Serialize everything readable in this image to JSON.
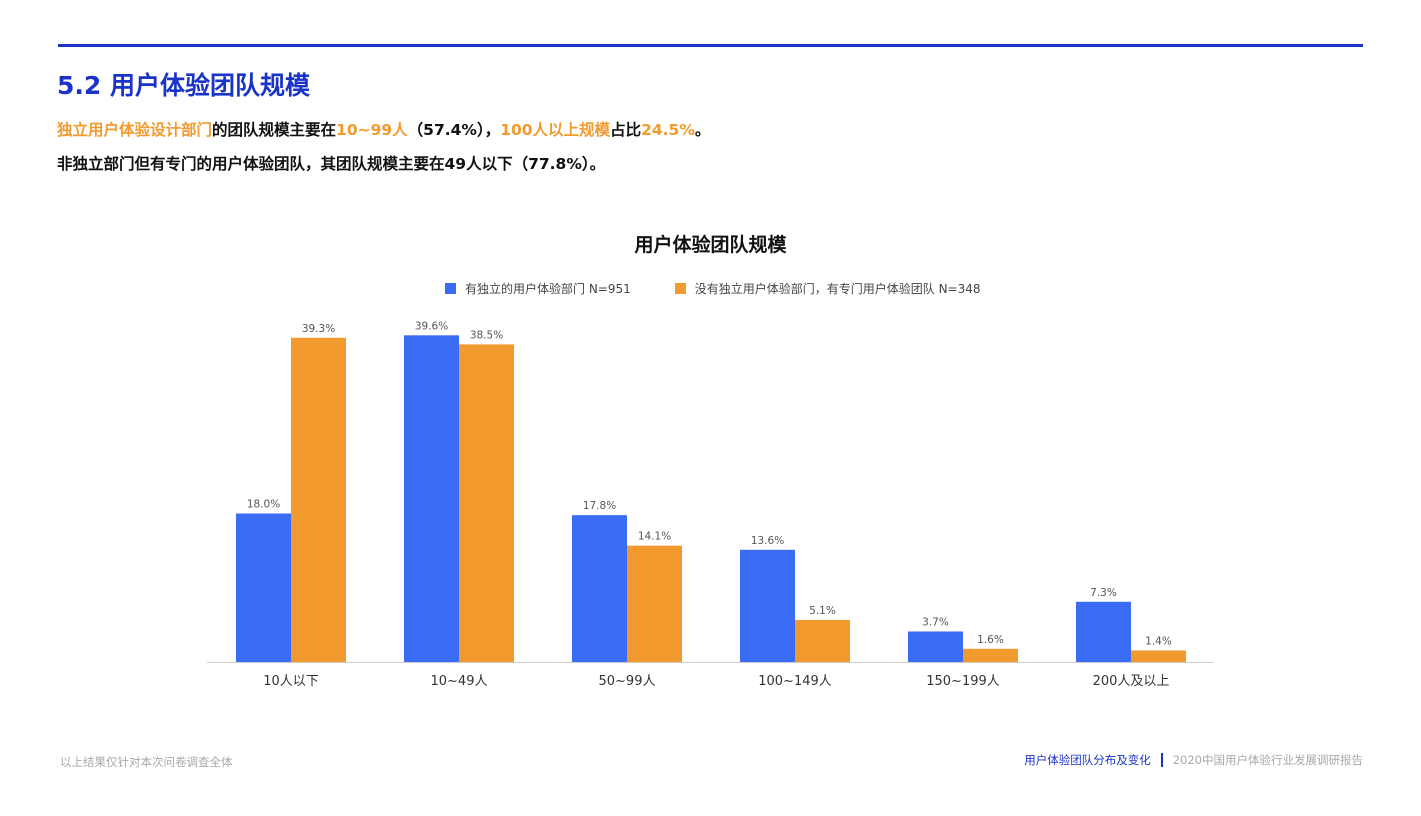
{
  "header": {
    "title": "5.2 用户体验团队规模",
    "summary_line1": {
      "p1": "独立用户体验设计部门",
      "p2": "的团队规模主要在",
      "p3": "10~99人",
      "p4": "（57.4%），",
      "p5": "100人以上规模",
      "p6": "占比",
      "p7": "24.5%",
      "p8": "。"
    },
    "summary_line2": "非独立部门但有专门的用户体验团队，其团队规模主要在49人以下（77.8%）。"
  },
  "colors": {
    "accent": "#1a33c8",
    "highlight": "#f29a2e",
    "series_blue": "#3b6cf6",
    "series_orange": "#f29a2e"
  },
  "chart_data": {
    "type": "bar",
    "title": "用户体验团队规模",
    "categories": [
      "10人以下",
      "10~49人",
      "50~99人",
      "100~149人",
      "150~199人",
      "200人及以上"
    ],
    "series": [
      {
        "name": "有独立的用户体验部门 N=951",
        "values": [
          18.0,
          39.6,
          17.8,
          13.6,
          3.7,
          7.3
        ],
        "labels": [
          "18.0%",
          "39.6%",
          "17.8%",
          "13.6%",
          "3.7%",
          "7.3%"
        ]
      },
      {
        "name": "没有独立用户体验部门，有专门用户体验团队 N=348",
        "values": [
          39.3,
          38.5,
          14.1,
          5.1,
          1.6,
          1.4
        ],
        "labels": [
          "39.3%",
          "38.5%",
          "14.1%",
          "5.1%",
          "1.6%",
          "1.4%"
        ]
      }
    ],
    "ylim": [
      0,
      40
    ],
    "grid": false,
    "legend": "top-center",
    "xlabel": "",
    "ylabel": ""
  },
  "footer": {
    "note": "以上结果仅针对本次问卷调查全体",
    "section": "用户体验团队分布及变化",
    "report": "2020中国用户体验行业发展调研报告"
  }
}
